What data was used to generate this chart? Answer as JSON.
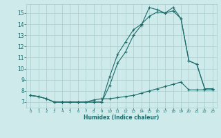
{
  "xlabel": "Humidex (Indice chaleur)",
  "ylabel": "",
  "xlim": [
    -0.5,
    23.5
  ],
  "ylim": [
    6.5,
    15.8
  ],
  "yticks": [
    7,
    8,
    9,
    10,
    11,
    12,
    13,
    14,
    15
  ],
  "xticks": [
    0,
    1,
    2,
    3,
    4,
    5,
    6,
    7,
    8,
    9,
    10,
    11,
    12,
    13,
    14,
    15,
    16,
    17,
    18,
    19,
    20,
    21,
    22,
    23
  ],
  "bg_color": "#ceeaea",
  "line_color": "#1a6b6b",
  "grid_color": "#aacccc",
  "series1_x": [
    0,
    1,
    2,
    3,
    4,
    5,
    6,
    7,
    8,
    9,
    10,
    11,
    12,
    13,
    14,
    15,
    16,
    17,
    18,
    19,
    20,
    21,
    22,
    23
  ],
  "series1_y": [
    7.6,
    7.5,
    7.3,
    7.0,
    7.0,
    7.0,
    7.0,
    7.0,
    7.0,
    7.0,
    8.5,
    10.5,
    11.5,
    13.0,
    13.9,
    15.5,
    15.3,
    15.0,
    15.5,
    14.5,
    10.7,
    10.4,
    8.2,
    8.2
  ],
  "series2_x": [
    0,
    1,
    2,
    3,
    4,
    5,
    6,
    7,
    8,
    9,
    10,
    11,
    12,
    13,
    14,
    15,
    16,
    17,
    18,
    19,
    20,
    21,
    22,
    23
  ],
  "series2_y": [
    7.6,
    7.5,
    7.3,
    7.0,
    7.0,
    7.0,
    7.0,
    7.0,
    7.2,
    7.3,
    7.3,
    7.4,
    7.5,
    7.6,
    7.8,
    8.0,
    8.2,
    8.4,
    8.6,
    8.8,
    8.1,
    8.1,
    8.1,
    8.1
  ],
  "series3_x": [
    0,
    1,
    2,
    3,
    4,
    5,
    6,
    7,
    8,
    9,
    10,
    11,
    12,
    13,
    14,
    15,
    16,
    17,
    18,
    19,
    20,
    21,
    22,
    23
  ],
  "series3_y": [
    7.6,
    7.5,
    7.3,
    7.0,
    7.0,
    7.0,
    7.0,
    7.0,
    7.0,
    7.0,
    9.3,
    11.3,
    12.4,
    13.5,
    14.0,
    14.7,
    15.1,
    15.0,
    15.2,
    14.5,
    10.7,
    10.4,
    8.2,
    8.2
  ]
}
